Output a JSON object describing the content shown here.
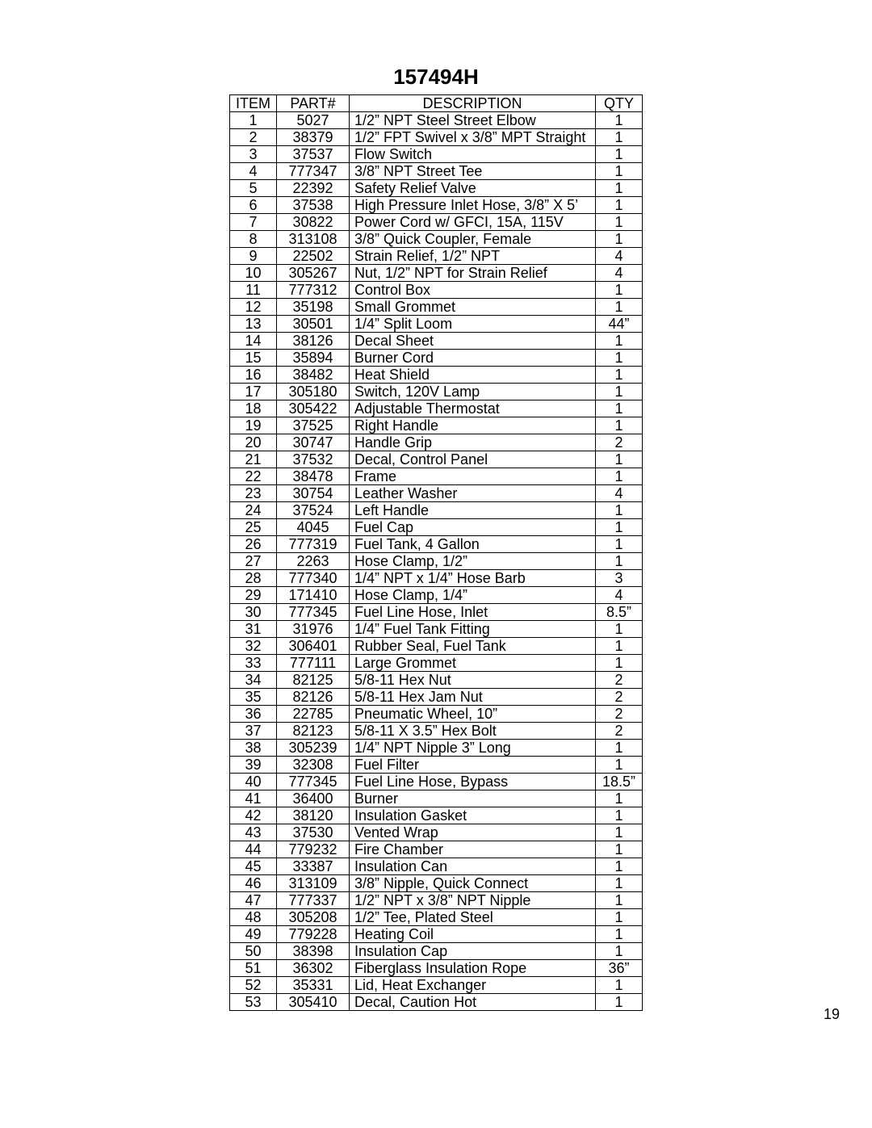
{
  "title": "157494H",
  "pageNumber": "19",
  "table": {
    "columns": [
      "ITEM",
      "PART#",
      "DESCRIPTION",
      "QTY"
    ],
    "rows": [
      [
        "1",
        "5027",
        "1/2” NPT Steel Street Elbow",
        "1"
      ],
      [
        "2",
        "38379",
        "1/2” FPT Swivel x 3/8” MPT Straight",
        "1"
      ],
      [
        "3",
        "37537",
        "Flow Switch",
        "1"
      ],
      [
        "4",
        "777347",
        "3/8” NPT Street Tee",
        "1"
      ],
      [
        "5",
        "22392",
        "Safety Relief Valve",
        "1"
      ],
      [
        "6",
        "37538",
        "High Pressure Inlet Hose, 3/8” X 5’",
        "1"
      ],
      [
        "7",
        "30822",
        "Power Cord w/ GFCI, 15A, 115V",
        "1"
      ],
      [
        "8",
        "313108",
        "3/8” Quick Coupler, Female",
        "1"
      ],
      [
        "9",
        "22502",
        "Strain Relief, 1/2” NPT",
        "4"
      ],
      [
        "10",
        "305267",
        "Nut, 1/2” NPT for Strain Relief",
        "4"
      ],
      [
        "11",
        "777312",
        "Control Box",
        "1"
      ],
      [
        "12",
        "35198",
        "Small Grommet",
        "1"
      ],
      [
        "13",
        "30501",
        "1/4” Split Loom",
        "44”"
      ],
      [
        "14",
        "38126",
        "Decal Sheet",
        "1"
      ],
      [
        "15",
        "35894",
        "Burner Cord",
        "1"
      ],
      [
        "16",
        "38482",
        "Heat Shield",
        "1"
      ],
      [
        "17",
        "305180",
        "Switch, 120V Lamp",
        "1"
      ],
      [
        "18",
        "305422",
        "Adjustable Thermostat",
        "1"
      ],
      [
        "19",
        "37525",
        "Right Handle",
        "1"
      ],
      [
        "20",
        "30747",
        "Handle Grip",
        "2"
      ],
      [
        "21",
        "37532",
        "Decal, Control Panel",
        "1"
      ],
      [
        "22",
        "38478",
        "Frame",
        "1"
      ],
      [
        "23",
        "30754",
        "Leather Washer",
        "4"
      ],
      [
        "24",
        "37524",
        "Left Handle",
        "1"
      ],
      [
        "25",
        "4045",
        "Fuel Cap",
        "1"
      ],
      [
        "26",
        "777319",
        "Fuel Tank, 4 Gallon",
        "1"
      ],
      [
        "27",
        "2263",
        "Hose Clamp, 1/2”",
        "1"
      ],
      [
        "28",
        "777340",
        "1/4” NPT x 1/4” Hose Barb",
        "3"
      ],
      [
        "29",
        "171410",
        "Hose Clamp, 1/4”",
        "4"
      ],
      [
        "30",
        "777345",
        "Fuel Line Hose, Inlet",
        "8.5”"
      ],
      [
        "31",
        "31976",
        "1/4” Fuel Tank Fitting",
        "1"
      ],
      [
        "32",
        "306401",
        "Rubber Seal, Fuel Tank",
        "1"
      ],
      [
        "33",
        "777111",
        "Large Grommet",
        "1"
      ],
      [
        "34",
        "82125",
        "5/8-11 Hex Nut",
        "2"
      ],
      [
        "35",
        "82126",
        "5/8-11 Hex Jam Nut",
        "2"
      ],
      [
        "36",
        "22785",
        "Pneumatic Wheel, 10”",
        "2"
      ],
      [
        "37",
        "82123",
        "5/8-11 X 3.5” Hex Bolt",
        "2"
      ],
      [
        "38",
        "305239",
        "1/4” NPT Nipple 3” Long",
        "1"
      ],
      [
        "39",
        "32308",
        "Fuel Filter",
        "1"
      ],
      [
        "40",
        "777345",
        "Fuel Line Hose, Bypass",
        "18.5”"
      ],
      [
        "41",
        "36400",
        "Burner",
        "1"
      ],
      [
        "42",
        "38120",
        "Insulation Gasket",
        "1"
      ],
      [
        "43",
        "37530",
        "Vented Wrap",
        "1"
      ],
      [
        "44",
        "779232",
        "Fire Chamber",
        "1"
      ],
      [
        "45",
        "33387",
        "Insulation Can",
        "1"
      ],
      [
        "46",
        "313109",
        "3/8” Nipple, Quick Connect",
        "1"
      ],
      [
        "47",
        "777337",
        "1/2” NPT x 3/8” NPT Nipple",
        "1"
      ],
      [
        "48",
        "305208",
        "1/2” Tee, Plated Steel",
        "1"
      ],
      [
        "49",
        "779228",
        "Heating Coil",
        "1"
      ],
      [
        "50",
        "38398",
        "Insulation Cap",
        "1"
      ],
      [
        "51",
        "36302",
        "Fiberglass Insulation Rope",
        "36”"
      ],
      [
        "52",
        "35331",
        "Lid, Heat Exchanger",
        "1"
      ],
      [
        "53",
        "305410",
        "Decal, Caution Hot",
        "1"
      ]
    ]
  }
}
